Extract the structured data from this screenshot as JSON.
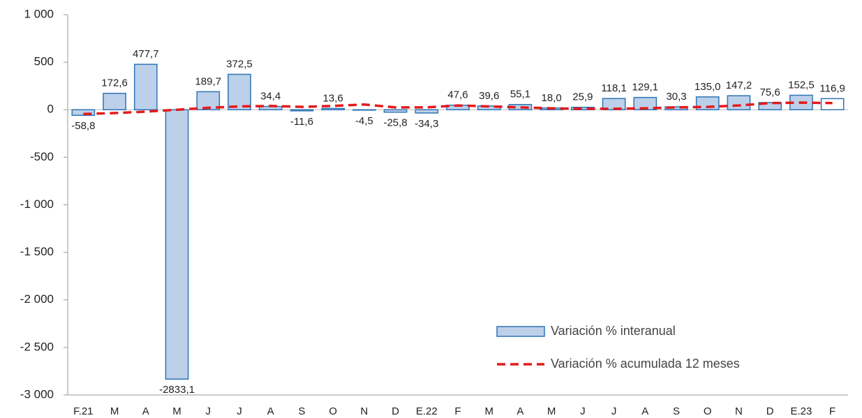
{
  "chart_data": {
    "type": "bar-line",
    "categories": [
      "F.21",
      "M",
      "A",
      "M",
      "J",
      "J",
      "A",
      "S",
      "O",
      "N",
      "D",
      "E.22",
      "F",
      "M",
      "A",
      "M",
      "J",
      "J",
      "A",
      "S",
      "O",
      "N",
      "D",
      "E.23",
      "F"
    ],
    "series": [
      {
        "name": "Variación % interanual",
        "type": "bar",
        "color": "#bdd0e9",
        "stroke": "#2e75b6",
        "fills": [
          "#bdd0e9",
          "#bdd0e9",
          "#bdd0e9",
          "#bdd0e9",
          "#bdd0e9",
          "#bdd0e9",
          "#bdd0e9",
          "#bdd0e9",
          "#bdd0e9",
          "#bdd0e9",
          "#bdd0e9",
          "#bdd0e9",
          "#bdd0e9",
          "#bdd0e9",
          "#bdd0e9",
          "#bdd0e9",
          "#bdd0e9",
          "#bdd0e9",
          "#bdd0e9",
          "#bdd0e9",
          "#bdd0e9",
          "#bdd0e9",
          "#bdd0e9",
          "#bdd0e9",
          "#ffffff"
        ],
        "values": [
          -58.8,
          172.6,
          477.7,
          -2833.1,
          189.7,
          372.5,
          34.4,
          -11.6,
          13.6,
          -4.5,
          -25.8,
          -34.3,
          47.6,
          39.6,
          55.1,
          18.0,
          25.9,
          118.1,
          129.1,
          30.3,
          135.0,
          147.2,
          75.6,
          152.5,
          116.9
        ],
        "value_labels": [
          "-58,8",
          "172,6",
          "477,7",
          "-2833,1",
          "189,7",
          "372,5",
          "34,4",
          "-11,6",
          "13,6",
          "-4,5",
          "-25,8",
          "-34,3",
          "47,6",
          "39,6",
          "55,1",
          "18,0",
          "25,9",
          "118,1",
          "129,1",
          "30,3",
          "135,0",
          "147,2",
          "75,6",
          "152,5",
          "116,9"
        ]
      },
      {
        "name": "Variación % acumulada 12 meses",
        "type": "line",
        "color": "#e31a1c",
        "dashed": true,
        "values": [
          -45,
          -35,
          -20,
          0,
          20,
          35,
          40,
          30,
          40,
          55,
          25,
          25,
          45,
          35,
          25,
          15,
          10,
          10,
          15,
          25,
          30,
          45,
          70,
          75,
          70
        ]
      }
    ],
    "ylim": [
      -3000,
      1000
    ],
    "yticks": [
      {
        "value": -3000,
        "label": "-3 000"
      },
      {
        "value": -2500,
        "label": "-2 500"
      },
      {
        "value": -2000,
        "label": "-2 000"
      },
      {
        "value": -1500,
        "label": "-1 500"
      },
      {
        "value": -1000,
        "label": "-1 000"
      },
      -500,
      0,
      500,
      {
        "value": 1000,
        "label": "1 000"
      }
    ],
    "grid": false,
    "legend": "lower right"
  }
}
